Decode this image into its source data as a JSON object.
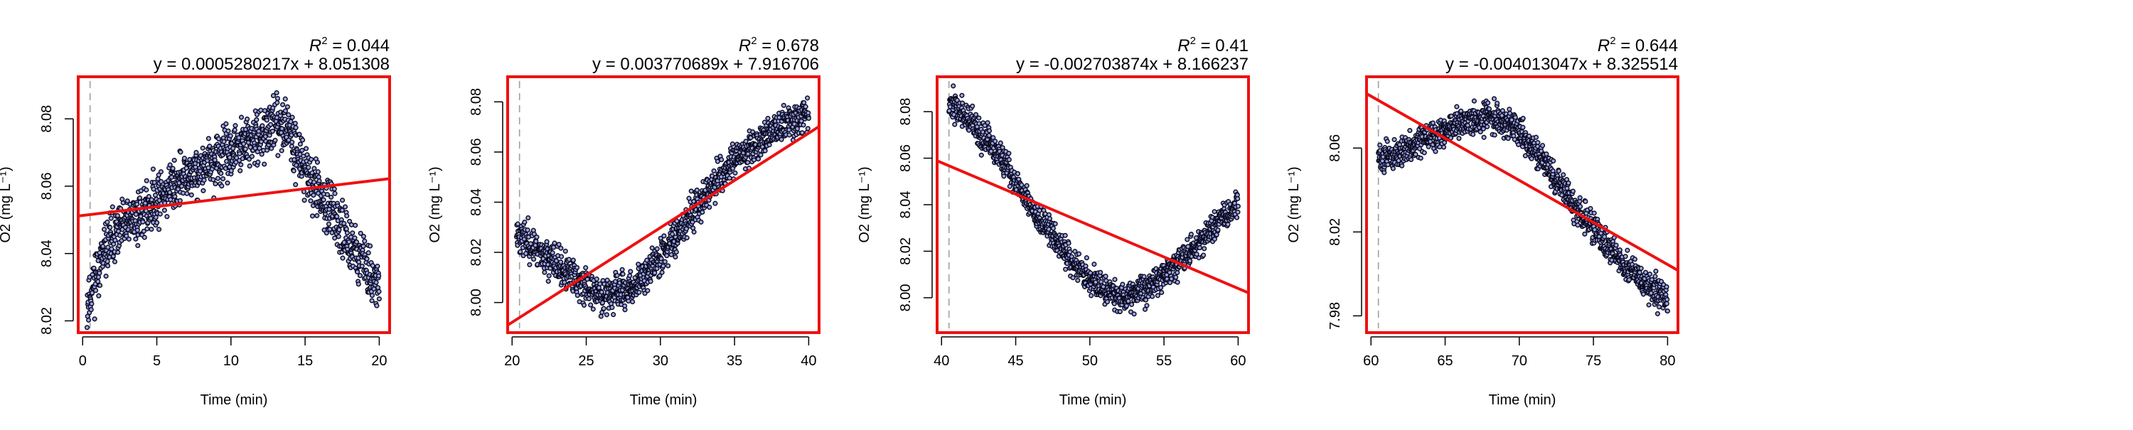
{
  "chart_data": [
    {
      "type": "scatter",
      "xlabel": "Time (min)",
      "ylabel": "O2 (mg L⁻¹)",
      "r2_label": "R",
      "r2_value": "0.044",
      "equation": "y = 0.0005280217x + 8.051308",
      "slope": 0.0005280217,
      "intercept": 8.051308,
      "xlim": [
        -0.3,
        20.7
      ],
      "ylim": [
        8.0165,
        8.0925
      ],
      "xticks": [
        0,
        5,
        10,
        15,
        20
      ],
      "yticks": [
        8.02,
        8.04,
        8.06,
        8.08
      ],
      "vline_x": 0.5,
      "knots": [
        [
          0.3,
          8.025
        ],
        [
          1,
          8.035
        ],
        [
          2,
          8.045
        ],
        [
          4,
          8.052
        ],
        [
          6,
          8.06
        ],
        [
          8,
          8.065
        ],
        [
          10,
          8.07
        ],
        [
          12,
          8.075
        ],
        [
          13.5,
          8.08
        ],
        [
          15,
          8.065
        ],
        [
          17,
          8.05
        ],
        [
          19,
          8.037
        ],
        [
          20,
          8.03
        ]
      ],
      "noise": 0.0055,
      "n_points": 1160,
      "seed": 11
    },
    {
      "type": "scatter",
      "xlabel": "Time (min)",
      "ylabel": "O2 (mg L⁻¹)",
      "r2_label": "R",
      "r2_value": "0.678",
      "equation": "y = 0.003770689x + 7.916706",
      "slope": 0.003770689,
      "intercept": 7.916706,
      "xlim": [
        19.7,
        40.7
      ],
      "ylim": [
        7.988,
        8.09
      ],
      "xticks": [
        20,
        25,
        30,
        35,
        40
      ],
      "yticks": [
        8.0,
        8.02,
        8.04,
        8.06,
        8.08
      ],
      "vline_x": 20.5,
      "knots": [
        [
          20.3,
          8.028
        ],
        [
          22,
          8.02
        ],
        [
          24,
          8.01
        ],
        [
          26,
          8.003
        ],
        [
          28,
          8.005
        ],
        [
          30,
          8.018
        ],
        [
          32,
          8.035
        ],
        [
          34,
          8.05
        ],
        [
          36,
          8.062
        ],
        [
          38,
          8.07
        ],
        [
          40,
          8.075
        ]
      ],
      "noise": 0.005,
      "n_points": 1160,
      "seed": 23
    },
    {
      "type": "scatter",
      "xlabel": "Time (min)",
      "ylabel": "O2 (mg L⁻¹)",
      "r2_label": "R",
      "r2_value": "0.41",
      "equation": "y = -0.002703874x + 8.166237",
      "slope": -0.002703874,
      "intercept": 8.166237,
      "xlim": [
        39.7,
        60.7
      ],
      "ylim": [
        7.985,
        8.095
      ],
      "xticks": [
        40,
        45,
        50,
        55,
        60
      ],
      "yticks": [
        8.0,
        8.02,
        8.04,
        8.06,
        8.08
      ],
      "vline_x": 40.5,
      "knots": [
        [
          40.5,
          8.085
        ],
        [
          42,
          8.075
        ],
        [
          44,
          8.06
        ],
        [
          46,
          8.04
        ],
        [
          48,
          8.022
        ],
        [
          50,
          8.008
        ],
        [
          52,
          8.0
        ],
        [
          54,
          8.005
        ],
        [
          56,
          8.015
        ],
        [
          58,
          8.028
        ],
        [
          60,
          8.04
        ]
      ],
      "noise": 0.0045,
      "n_points": 1160,
      "seed": 37
    },
    {
      "type": "scatter",
      "xlabel": "Time (min)",
      "ylabel": "O2 (mg L⁻¹)",
      "r2_label": "R",
      "r2_value": "0.644",
      "equation": "y = -0.004013047x + 8.325514",
      "slope": -0.004013047,
      "intercept": 8.325514,
      "xlim": [
        59.7,
        80.7
      ],
      "ylim": [
        7.972,
        8.094
      ],
      "xticks": [
        60,
        65,
        70,
        75,
        80
      ],
      "yticks": [
        7.98,
        8.02,
        8.06
      ],
      "vline_x": 60.5,
      "knots": [
        [
          60.5,
          8.055
        ],
        [
          62,
          8.058
        ],
        [
          64,
          8.065
        ],
        [
          66,
          8.072
        ],
        [
          68,
          8.075
        ],
        [
          70,
          8.068
        ],
        [
          72,
          8.05
        ],
        [
          74,
          8.03
        ],
        [
          76,
          8.013
        ],
        [
          78,
          7.998
        ],
        [
          80,
          7.988
        ]
      ],
      "noise": 0.0048,
      "n_points": 1160,
      "seed": 51
    }
  ]
}
